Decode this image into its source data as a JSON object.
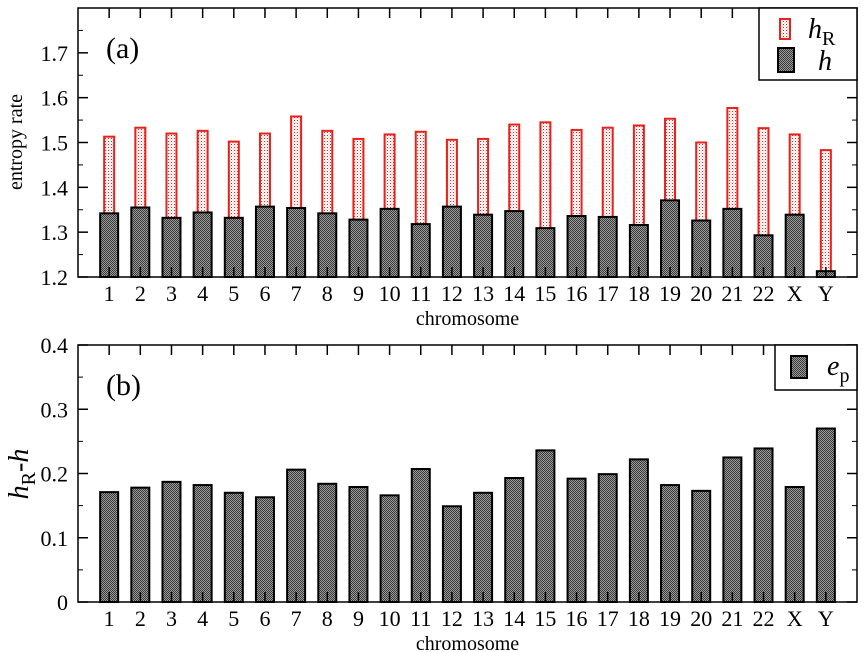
{
  "chart_data": [
    {
      "type": "bar",
      "panel_label": "(a)",
      "xlabel": "chromosome",
      "ylabel": "entropy rate",
      "ylim": [
        1.2,
        1.8
      ],
      "yticks": [
        "1.2",
        "1.3",
        "1.4",
        "1.5",
        "1.6",
        "1.7"
      ],
      "grid": false,
      "legend_position": "top-right",
      "categories": [
        "1",
        "2",
        "3",
        "4",
        "5",
        "6",
        "7",
        "8",
        "9",
        "10",
        "11",
        "12",
        "13",
        "14",
        "15",
        "16",
        "17",
        "18",
        "19",
        "20",
        "21",
        "22",
        "X",
        "Y"
      ],
      "series": [
        {
          "name": "h_R",
          "legend_main": "h",
          "legend_sub": "R",
          "style": "outline",
          "color": "#e8221b",
          "values": [
            1.513,
            1.533,
            1.52,
            1.526,
            1.502,
            1.52,
            1.558,
            1.526,
            1.508,
            1.518,
            1.524,
            1.506,
            1.508,
            1.54,
            1.545,
            1.528,
            1.533,
            1.538,
            1.553,
            1.5,
            1.577,
            1.532,
            1.518,
            1.483
          ]
        },
        {
          "name": "h",
          "legend_main": "h",
          "legend_sub": "",
          "style": "filled",
          "color": "#6e6e6e",
          "values": [
            1.342,
            1.355,
            1.332,
            1.344,
            1.332,
            1.357,
            1.354,
            1.342,
            1.328,
            1.352,
            1.318,
            1.357,
            1.339,
            1.347,
            1.309,
            1.336,
            1.334,
            1.316,
            1.371,
            1.326,
            1.352,
            1.293,
            1.339,
            1.213
          ]
        }
      ]
    },
    {
      "type": "bar",
      "panel_label": "(b)",
      "xlabel": "chromosome",
      "ylabel_main": "h",
      "ylabel_sub": "R",
      "ylabel_tail": "-h",
      "ylim": [
        0,
        0.4
      ],
      "yticks": [
        "0",
        "0.1",
        "0.2",
        "0.3",
        "0.4"
      ],
      "grid": false,
      "legend_position": "top-right",
      "categories": [
        "1",
        "2",
        "3",
        "4",
        "5",
        "6",
        "7",
        "8",
        "9",
        "10",
        "11",
        "12",
        "13",
        "14",
        "15",
        "16",
        "17",
        "18",
        "19",
        "20",
        "21",
        "22",
        "X",
        "Y"
      ],
      "series": [
        {
          "name": "e_p",
          "legend_main": "e",
          "legend_sub": "p",
          "style": "filled",
          "color": "#6e6e6e",
          "values": [
            0.171,
            0.178,
            0.187,
            0.182,
            0.17,
            0.163,
            0.206,
            0.184,
            0.179,
            0.166,
            0.207,
            0.149,
            0.17,
            0.193,
            0.236,
            0.192,
            0.199,
            0.222,
            0.182,
            0.173,
            0.225,
            0.239,
            0.179,
            0.27
          ]
        }
      ]
    }
  ]
}
